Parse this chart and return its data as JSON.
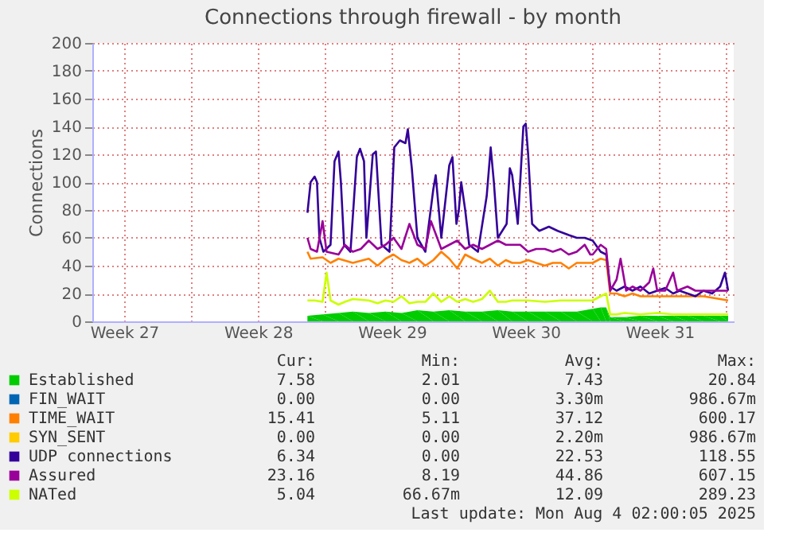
{
  "chart_data": {
    "type": "line",
    "title": "Connections through firewall - by month",
    "ylabel": "Connections",
    "xlim": [
      "2025-07-01T20:00",
      "2025-08-04T09:00"
    ],
    "ylim": [
      0,
      200
    ],
    "yticks": [
      0,
      20,
      40,
      60,
      80,
      100,
      120,
      140,
      160,
      180,
      200
    ],
    "xticks": [
      {
        "value": "2025-07-03T12:00",
        "label": "Week 27"
      },
      {
        "value": "2025-07-07T00:00",
        "label": null
      },
      {
        "value": "2025-07-10T12:00",
        "label": "Week 28"
      },
      {
        "value": "2025-07-14T00:00",
        "label": null
      },
      {
        "value": "2025-07-17T12:00",
        "label": "Week 29"
      },
      {
        "value": "2025-07-21T00:00",
        "label": null
      },
      {
        "value": "2025-07-24T12:00",
        "label": "Week 30"
      },
      {
        "value": "2025-07-28T00:00",
        "label": null
      },
      {
        "value": "2025-07-31T12:00",
        "label": "Week 31"
      },
      {
        "value": "2025-08-04T00:00",
        "label": null
      }
    ],
    "grid": true,
    "legend": "bottom",
    "series": [
      {
        "name": "Established",
        "color": "#00cc00",
        "type": "area",
        "x": [
          "2025-07-13T02:00",
          "2025-07-13T21:00",
          "2025-07-14T17:00",
          "2025-07-15T11:00",
          "2025-07-16T07:00",
          "2025-07-17T04:00",
          "2025-07-18T00:00",
          "2025-07-18T20:00",
          "2025-07-19T16:00",
          "2025-07-20T12:00",
          "2025-07-21T08:00",
          "2025-07-22T05:00",
          "2025-07-23T01:00",
          "2025-07-23T19:00",
          "2025-07-24T15:00",
          "2025-07-25T12:00",
          "2025-07-26T08:00",
          "2025-07-27T04:00",
          "2025-07-28T00:00",
          "2025-07-28T10:00",
          "2025-07-28T17:00",
          "2025-07-28T22:00",
          "2025-07-29T16:00",
          "2025-07-30T12:00",
          "2025-07-31T09:00",
          "2025-08-01T05:00",
          "2025-08-01T23:00",
          "2025-08-02T19:00",
          "2025-08-03T16:00",
          "2025-08-04T02:00"
        ],
        "values": [
          4,
          5,
          6,
          7,
          6,
          7,
          6,
          8,
          7,
          8,
          7,
          7,
          8,
          7,
          7,
          7,
          7,
          7,
          9,
          10,
          10,
          3,
          3,
          4,
          4,
          4,
          4,
          4,
          4,
          4
        ]
      },
      {
        "name": "FIN_WAIT",
        "color": "#0066b3"
      },
      {
        "name": "TIME_WAIT",
        "color": "#ff8000",
        "x": [
          "2025-07-13T02:00",
          "2025-07-13T06:00",
          "2025-07-13T21:00",
          "2025-07-14T07:00",
          "2025-07-14T17:00",
          "2025-07-15T11:00",
          "2025-07-16T07:00",
          "2025-07-16T18:00",
          "2025-07-17T04:00",
          "2025-07-17T14:00",
          "2025-07-18T00:00",
          "2025-07-18T10:00",
          "2025-07-18T20:00",
          "2025-07-19T06:00",
          "2025-07-19T16:00",
          "2025-07-20T02:00",
          "2025-07-20T12:00",
          "2025-07-20T22:00",
          "2025-07-21T08:00",
          "2025-07-21T18:00",
          "2025-07-22T05:00",
          "2025-07-22T15:00",
          "2025-07-23T01:00",
          "2025-07-23T11:00",
          "2025-07-23T19:00",
          "2025-07-24T05:00",
          "2025-07-24T15:00",
          "2025-07-25T01:00",
          "2025-07-25T12:00",
          "2025-07-25T22:00",
          "2025-07-26T08:00",
          "2025-07-26T18:00",
          "2025-07-27T04:00",
          "2025-07-27T14:00",
          "2025-07-28T00:00",
          "2025-07-28T10:00",
          "2025-07-28T17:00",
          "2025-07-28T22:00",
          "2025-07-29T06:00",
          "2025-07-29T16:00",
          "2025-07-30T02:00",
          "2025-07-30T12:00",
          "2025-07-31T09:00",
          "2025-08-01T05:00",
          "2025-08-01T23:00",
          "2025-08-02T19:00",
          "2025-08-03T16:00",
          "2025-08-04T02:00"
        ],
        "values": [
          50,
          45,
          46,
          42,
          45,
          42,
          45,
          40,
          45,
          48,
          44,
          42,
          45,
          40,
          44,
          50,
          45,
          38,
          48,
          45,
          42,
          45,
          40,
          44,
          42,
          42,
          44,
          42,
          40,
          42,
          42,
          38,
          42,
          42,
          42,
          45,
          44,
          20,
          20,
          18,
          20,
          18,
          18,
          18,
          18,
          18,
          16,
          15
        ]
      },
      {
        "name": "SYN_SENT",
        "color": "#ffcc00"
      },
      {
        "name": "UDP connections",
        "color": "#330099",
        "x": [
          "2025-07-13T02:00",
          "2025-07-13T06:00",
          "2025-07-13T11:00",
          "2025-07-13T14:00",
          "2025-07-13T17:00",
          "2025-07-13T22:00",
          "2025-07-14T07:00",
          "2025-07-14T12:00",
          "2025-07-14T17:00",
          "2025-07-14T20:00",
          "2025-07-15T00:00",
          "2025-07-15T08:00",
          "2025-07-15T16:00",
          "2025-07-15T20:00",
          "2025-07-16T01:00",
          "2025-07-16T04:00",
          "2025-07-16T12:00",
          "2025-07-16T16:00",
          "2025-07-16T23:00",
          "2025-07-17T09:00",
          "2025-07-17T15:00",
          "2025-07-17T22:00",
          "2025-07-18T05:00",
          "2025-07-18T08:00",
          "2025-07-18T13:00",
          "2025-07-18T20:00",
          "2025-07-19T06:00",
          "2025-07-19T16:00",
          "2025-07-19T19:00",
          "2025-07-20T02:00",
          "2025-07-20T12:00",
          "2025-07-20T16:00",
          "2025-07-20T21:00",
          "2025-07-21T00:00",
          "2025-07-21T03:00",
          "2025-07-21T08:00",
          "2025-07-21T13:00",
          "2025-07-22T00:00",
          "2025-07-22T11:00",
          "2025-07-22T16:00",
          "2025-07-22T20:00",
          "2025-07-23T01:00",
          "2025-07-23T12:00",
          "2025-07-23T16:00",
          "2025-07-23T19:00",
          "2025-07-24T02:00",
          "2025-07-24T09:00",
          "2025-07-24T12:00",
          "2025-07-24T15:00",
          "2025-07-24T20:00",
          "2025-07-25T05:00",
          "2025-07-25T17:00",
          "2025-07-26T04:00",
          "2025-07-26T18:00",
          "2025-07-27T04:00",
          "2025-07-27T14:00",
          "2025-07-28T00:00",
          "2025-07-28T10:00",
          "2025-07-28T17:00",
          "2025-07-28T22:00",
          "2025-07-29T06:00",
          "2025-07-29T16:00",
          "2025-07-30T02:00",
          "2025-07-30T12:00",
          "2025-07-30T23:00",
          "2025-07-31T09:00",
          "2025-07-31T19:00",
          "2025-08-01T05:00",
          "2025-08-01T13:00",
          "2025-08-01T23:00",
          "2025-08-02T09:00",
          "2025-08-02T19:00",
          "2025-08-03T06:00",
          "2025-08-03T16:00",
          "2025-08-03T22:00",
          "2025-08-04T02:00"
        ],
        "values": [
          78,
          100,
          104,
          100,
          60,
          50,
          55,
          115,
          122,
          100,
          55,
          50,
          118,
          124,
          115,
          60,
          120,
          122,
          55,
          50,
          125,
          130,
          128,
          138,
          110,
          60,
          50,
          95,
          105,
          60,
          112,
          118,
          70,
          80,
          100,
          80,
          55,
          50,
          90,
          125,
          100,
          60,
          70,
          110,
          105,
          70,
          140,
          142,
          120,
          70,
          65,
          68,
          65,
          62,
          60,
          60,
          58,
          50,
          48,
          25,
          22,
          25,
          22,
          25,
          20,
          22,
          24,
          20,
          22,
          20,
          18,
          22,
          20,
          25,
          35,
          22
        ]
      },
      {
        "name": "Assured",
        "color": "#990099",
        "x": [
          "2025-07-13T02:00",
          "2025-07-13T06:00",
          "2025-07-13T14:00",
          "2025-07-13T21:00",
          "2025-07-14T02:00",
          "2025-07-14T17:00",
          "2025-07-15T01:00",
          "2025-07-15T11:00",
          "2025-07-15T21:00",
          "2025-07-16T07:00",
          "2025-07-16T18:00",
          "2025-07-17T04:00",
          "2025-07-17T14:00",
          "2025-07-18T00:00",
          "2025-07-18T10:00",
          "2025-07-18T20:00",
          "2025-07-19T06:00",
          "2025-07-19T13:00",
          "2025-07-20T02:00",
          "2025-07-20T12:00",
          "2025-07-20T22:00",
          "2025-07-21T08:00",
          "2025-07-21T18:00",
          "2025-07-22T05:00",
          "2025-07-22T15:00",
          "2025-07-23T01:00",
          "2025-07-23T11:00",
          "2025-07-23T19:00",
          "2025-07-24T05:00",
          "2025-07-24T15:00",
          "2025-07-25T01:00",
          "2025-07-25T12:00",
          "2025-07-25T22:00",
          "2025-07-26T08:00",
          "2025-07-26T18:00",
          "2025-07-27T04:00",
          "2025-07-27T14:00",
          "2025-07-27T21:00",
          "2025-07-28T00:00",
          "2025-07-28T10:00",
          "2025-07-28T17:00",
          "2025-07-28T22:00",
          "2025-07-29T06:00",
          "2025-07-29T11:00",
          "2025-07-29T18:00",
          "2025-07-30T02:00",
          "2025-07-30T12:00",
          "2025-07-30T23:00",
          "2025-07-31T04:00",
          "2025-07-31T09:00",
          "2025-07-31T19:00",
          "2025-08-01T05:00",
          "2025-08-01T10:00",
          "2025-08-01T23:00",
          "2025-08-02T09:00",
          "2025-08-02T19:00",
          "2025-08-03T06:00",
          "2025-08-03T16:00",
          "2025-08-04T02:00"
        ],
        "values": [
          60,
          52,
          50,
          72,
          50,
          48,
          55,
          50,
          52,
          58,
          52,
          55,
          60,
          52,
          70,
          55,
          52,
          72,
          52,
          55,
          58,
          52,
          55,
          52,
          55,
          58,
          55,
          55,
          55,
          50,
          52,
          52,
          50,
          52,
          48,
          50,
          55,
          48,
          48,
          55,
          52,
          22,
          30,
          45,
          22,
          25,
          22,
          28,
          38,
          22,
          22,
          35,
          22,
          25,
          22,
          22,
          22,
          22,
          22
        ]
      },
      {
        "name": "NATed",
        "color": "#ccff00",
        "x": [
          "2025-07-13T02:00",
          "2025-07-13T11:00",
          "2025-07-13T21:00",
          "2025-07-14T02:00",
          "2025-07-14T07:00",
          "2025-07-14T17:00",
          "2025-07-15T01:00",
          "2025-07-15T11:00",
          "2025-07-16T07:00",
          "2025-07-16T18:00",
          "2025-07-17T04:00",
          "2025-07-17T14:00",
          "2025-07-18T00:00",
          "2025-07-18T10:00",
          "2025-07-18T20:00",
          "2025-07-19T06:00",
          "2025-07-19T16:00",
          "2025-07-20T02:00",
          "2025-07-20T12:00",
          "2025-07-20T22:00",
          "2025-07-21T08:00",
          "2025-07-21T18:00",
          "2025-07-22T05:00",
          "2025-07-22T15:00",
          "2025-07-23T01:00",
          "2025-07-23T11:00",
          "2025-07-23T19:00",
          "2025-07-24T15:00",
          "2025-07-25T12:00",
          "2025-07-26T08:00",
          "2025-07-27T04:00",
          "2025-07-28T00:00",
          "2025-07-28T10:00",
          "2025-07-28T17:00",
          "2025-07-28T22:00",
          "2025-07-29T06:00",
          "2025-07-29T16:00",
          "2025-07-30T12:00",
          "2025-07-31T09:00",
          "2025-08-01T05:00",
          "2025-08-01T23:00",
          "2025-08-02T19:00",
          "2025-08-03T16:00",
          "2025-08-04T02:00"
        ],
        "values": [
          15,
          15,
          14,
          35,
          15,
          12,
          14,
          16,
          15,
          13,
          15,
          14,
          18,
          13,
          14,
          14,
          20,
          14,
          18,
          14,
          16,
          14,
          16,
          22,
          14,
          14,
          15,
          15,
          14,
          15,
          15,
          15,
          18,
          20,
          5,
          5,
          6,
          5,
          6,
          5,
          5,
          5,
          5,
          5
        ]
      }
    ],
    "annotations": [
      "Cur:",
      "Min:",
      "Avg:",
      "Max:",
      "7.58",
      "2.01",
      "7.43",
      "20.84",
      "0.00",
      "0.00",
      "3.30m",
      "986.67m",
      "15.41",
      "5.11",
      "37.12",
      "600.17",
      "0.00",
      "0.00",
      "2.20m",
      "986.67m",
      "6.34",
      "0.00",
      "22.53",
      "118.55",
      "23.16",
      "8.19",
      "44.86",
      "607.15",
      "5.04",
      "66.67m",
      "12.09",
      "289.23",
      "Last update: Mon Aug  4 02:00:05 2025"
    ]
  }
}
